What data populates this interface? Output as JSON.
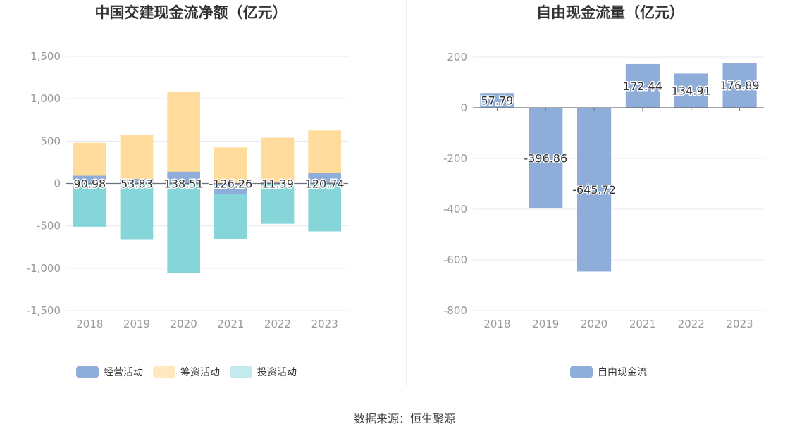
{
  "chart_data": [
    {
      "type": "bar",
      "stacked": true,
      "title": "中国交建现金流净额（亿元）",
      "categories": [
        "2018",
        "2019",
        "2020",
        "2021",
        "2022",
        "2023"
      ],
      "ylim": [
        -1500,
        1500
      ],
      "yticks": [
        1500,
        1000,
        500,
        0,
        -500,
        -1000,
        -1500
      ],
      "ytick_labels": [
        "1,500",
        "1,000",
        "500",
        "0",
        "-500",
        "-1,000",
        "-1,500"
      ],
      "grid": true,
      "legend_position": "bottom",
      "series": [
        {
          "name": "经营活动",
          "values": [
            90.98,
            53.83,
            138.51,
            -126.26,
            11.39,
            120.74
          ],
          "color": "#8fadd9"
        },
        {
          "name": "筹资活动",
          "values": [
            480,
            570,
            1075,
            425,
            540,
            625
          ],
          "color": "#ffdb9c"
        },
        {
          "name": "投资活动",
          "values": [
            -510,
            -665,
            -1060,
            -660,
            -475,
            -565
          ],
          "color": "#86d6d9"
        }
      ],
      "data_labels": [
        "90.98",
        "53.83",
        "138.51",
        "-126.26",
        "11.39",
        "120.74"
      ]
    },
    {
      "type": "bar",
      "title": "自由现金流量（亿元）",
      "categories": [
        "2018",
        "2019",
        "2020",
        "2021",
        "2022",
        "2023"
      ],
      "ylim": [
        -800,
        200
      ],
      "yticks": [
        200,
        0,
        -200,
        -400,
        -600,
        -800
      ],
      "ytick_labels": [
        "200",
        "0",
        "-200",
        "-400",
        "-600",
        "-800"
      ],
      "grid": true,
      "legend_position": "bottom",
      "series": [
        {
          "name": "自由现金流",
          "values": [
            57.79,
            -396.86,
            -645.72,
            172.44,
            134.91,
            176.89
          ],
          "color": "#8fadd9"
        }
      ],
      "data_labels": [
        "57.79",
        "-396.86",
        "-645.72",
        "172.44",
        "134.91",
        "176.89"
      ]
    }
  ],
  "legend_colors": {
    "operating": "#8fadd9",
    "financing": "#ffe7bf",
    "investing": "#c3eaec",
    "free_cash_flow": "#8fadd9"
  },
  "source": "数据来源：恒生聚源"
}
